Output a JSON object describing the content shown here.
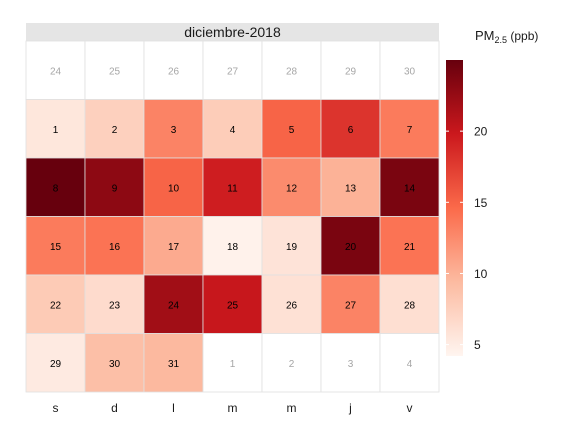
{
  "chart_data": {
    "type": "heatmap",
    "title": "diciembre-2018",
    "legend": {
      "title_main": "PM",
      "title_sub": "2.5",
      "title_unit": " (ppb)",
      "ticks": [
        5,
        10,
        15,
        20
      ],
      "range": [
        4.2,
        25
      ],
      "placement": "right"
    },
    "weekdays": [
      "s",
      "d",
      "l",
      "m",
      "m",
      "j",
      "v"
    ],
    "colors": {
      "low": "#fff5f0",
      "mid1": "#fcbba1",
      "mid2": "#fb6a4a",
      "mid3": "#cb181d",
      "high": "#67000d",
      "header_bg": "#e5e5e5",
      "grid": "#e0e0e0",
      "outside_text": "#a6a6a6",
      "text": "#000000"
    },
    "weeks": [
      [
        {
          "day": "24",
          "current": false
        },
        {
          "day": "25",
          "current": false
        },
        {
          "day": "26",
          "current": false
        },
        {
          "day": "27",
          "current": false
        },
        {
          "day": "28",
          "current": false
        },
        {
          "day": "29",
          "current": false
        },
        {
          "day": "30",
          "current": false
        }
      ],
      [
        {
          "day": "1",
          "current": true,
          "value": 5.5
        },
        {
          "day": "2",
          "current": true,
          "value": 7.5
        },
        {
          "day": "3",
          "current": true,
          "value": 13.0
        },
        {
          "day": "4",
          "current": true,
          "value": 7.8
        },
        {
          "day": "5",
          "current": true,
          "value": 15.0
        },
        {
          "day": "6",
          "current": true,
          "value": 18.0
        },
        {
          "day": "7",
          "current": true,
          "value": 13.5
        }
      ],
      [
        {
          "day": "8",
          "current": true,
          "value": 25.0
        },
        {
          "day": "9",
          "current": true,
          "value": 23.0
        },
        {
          "day": "10",
          "current": true,
          "value": 15.0
        },
        {
          "day": "11",
          "current": true,
          "value": 19.5
        },
        {
          "day": "12",
          "current": true,
          "value": 12.5
        },
        {
          "day": "13",
          "current": true,
          "value": 10.0
        },
        {
          "day": "14",
          "current": true,
          "value": 24.0
        }
      ],
      [
        {
          "day": "15",
          "current": true,
          "value": 13.5
        },
        {
          "day": "16",
          "current": true,
          "value": 14.0
        },
        {
          "day": "17",
          "current": true,
          "value": 10.5
        },
        {
          "day": "18",
          "current": true,
          "value": 4.5
        },
        {
          "day": "19",
          "current": true,
          "value": 5.8
        },
        {
          "day": "20",
          "current": true,
          "value": 24.0
        },
        {
          "day": "21",
          "current": true,
          "value": 14.0
        }
      ],
      [
        {
          "day": "22",
          "current": true,
          "value": 8.0
        },
        {
          "day": "23",
          "current": true,
          "value": 6.5
        },
        {
          "day": "24",
          "current": true,
          "value": 22.0
        },
        {
          "day": "25",
          "current": true,
          "value": 20.0
        },
        {
          "day": "26",
          "current": true,
          "value": 6.0
        },
        {
          "day": "27",
          "current": true,
          "value": 13.0
        },
        {
          "day": "28",
          "current": true,
          "value": 6.2
        }
      ],
      [
        {
          "day": "29",
          "current": true,
          "value": 5.2
        },
        {
          "day": "30",
          "current": true,
          "value": 9.0
        },
        {
          "day": "31",
          "current": true,
          "value": 9.5
        },
        {
          "day": "1",
          "current": false
        },
        {
          "day": "2",
          "current": false
        },
        {
          "day": "3",
          "current": false
        },
        {
          "day": "4",
          "current": false
        }
      ]
    ]
  }
}
